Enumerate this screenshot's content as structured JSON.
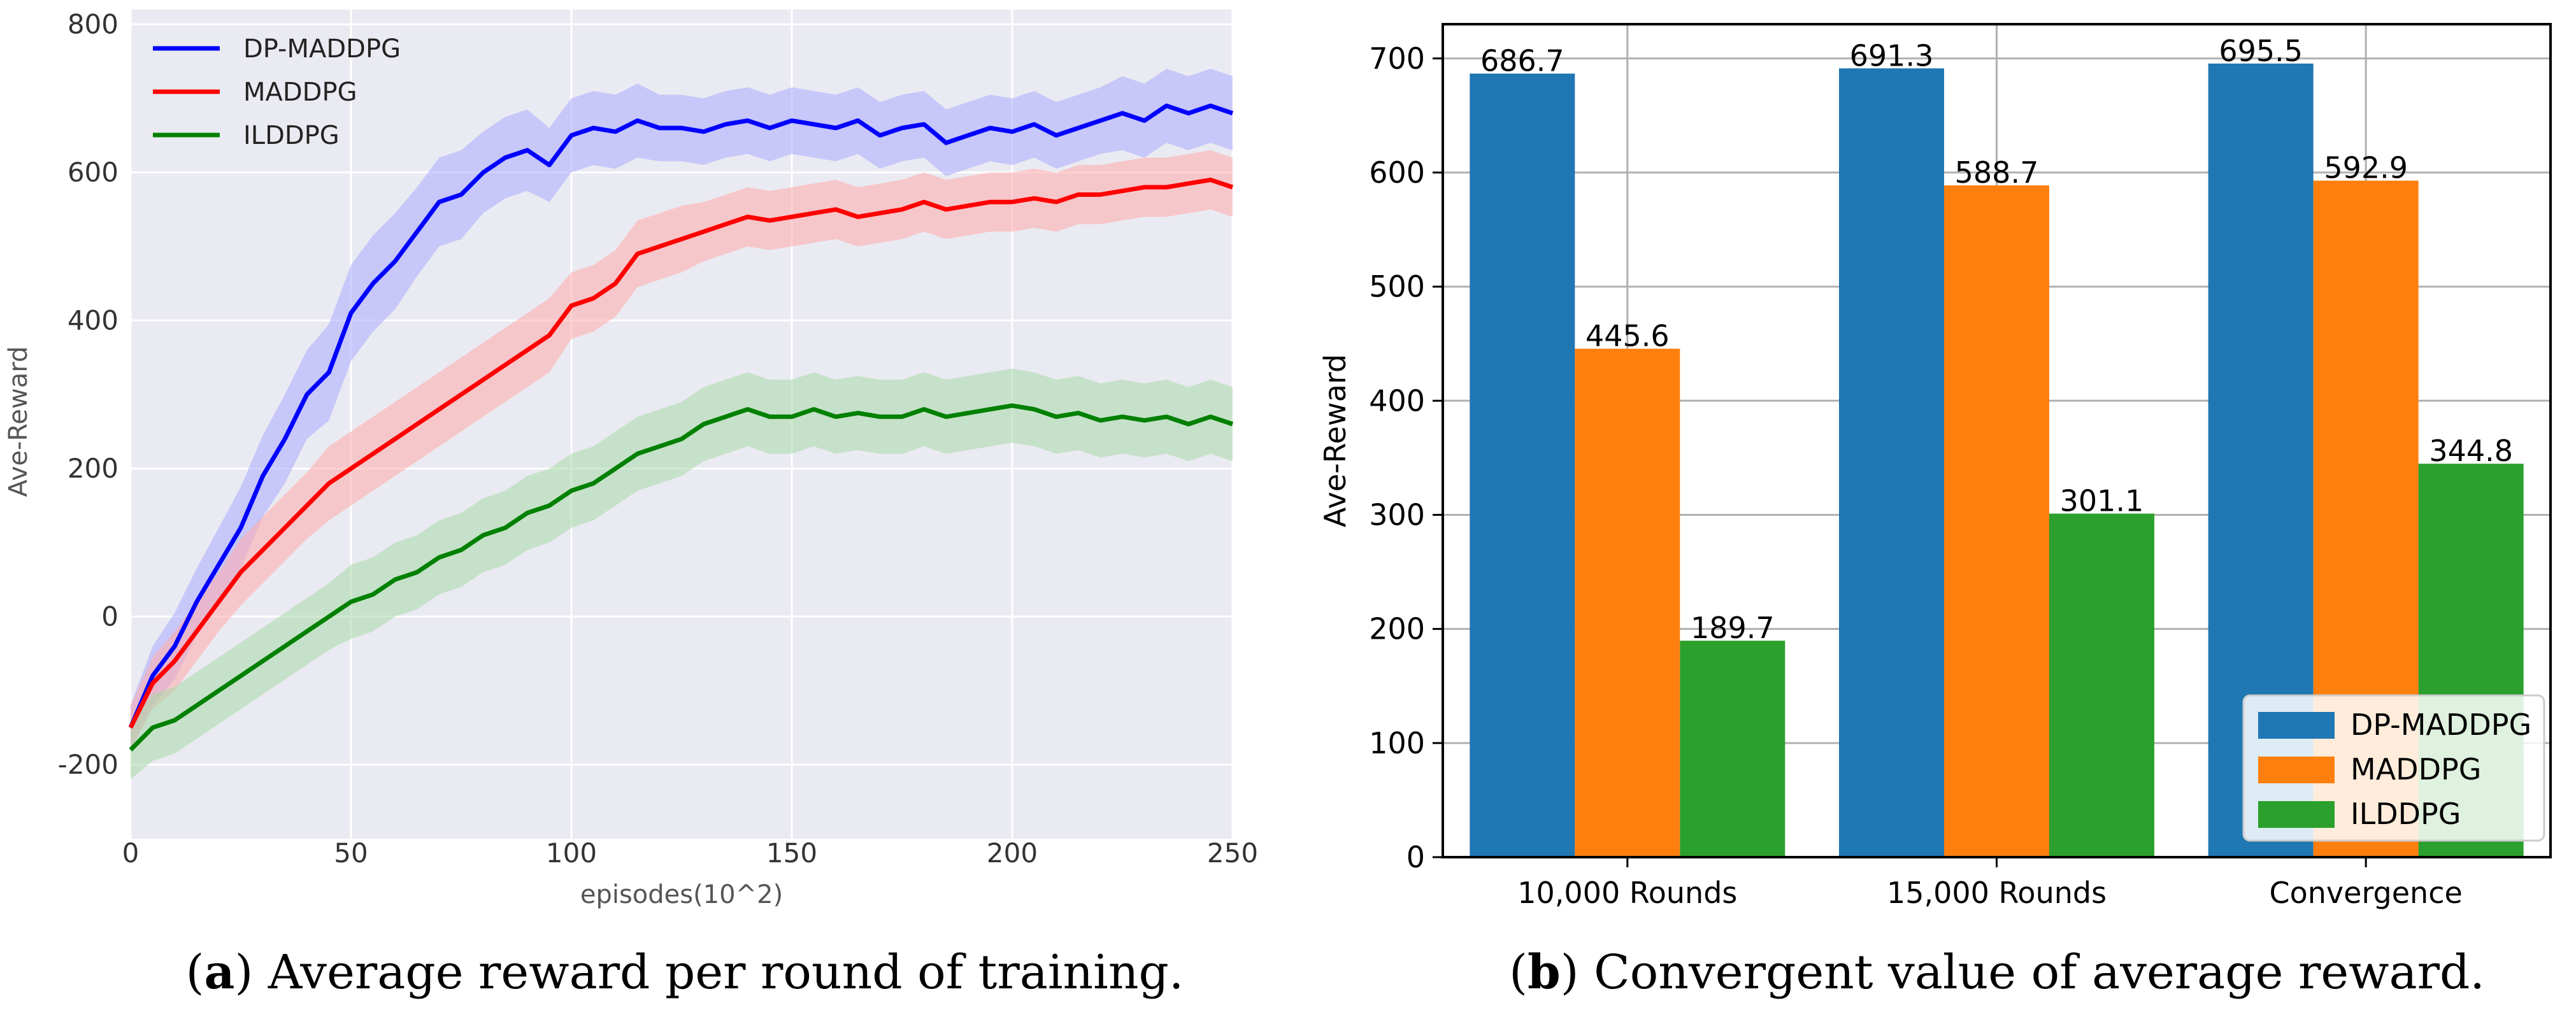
{
  "chart_data": [
    {
      "id": "a",
      "type": "line",
      "panel_label": "a",
      "caption": "Average reward per round of training.",
      "xlabel": "episodes(10^2)",
      "ylabel": "Ave-Reward",
      "xlim": [
        0,
        250
      ],
      "ylim": [
        -300,
        820
      ],
      "xticks": [
        "0",
        "50",
        "100",
        "150",
        "200",
        "250"
      ],
      "yticks": [
        "-200",
        "0",
        "200",
        "400",
        "600",
        "800"
      ],
      "grid": true,
      "legend_position": "top-left",
      "series": [
        {
          "name": "DP-MADDPG",
          "color": "#0000ff",
          "band_color": "#aaaaff",
          "x": [
            0,
            5,
            10,
            15,
            20,
            25,
            30,
            35,
            40,
            45,
            50,
            55,
            60,
            65,
            70,
            75,
            80,
            85,
            90,
            95,
            100,
            105,
            110,
            115,
            120,
            125,
            130,
            135,
            140,
            145,
            150,
            155,
            160,
            165,
            170,
            175,
            180,
            185,
            190,
            195,
            200,
            205,
            210,
            215,
            220,
            225,
            230,
            235,
            240,
            245,
            250
          ],
          "y": [
            -150,
            -80,
            -40,
            20,
            70,
            120,
            190,
            240,
            300,
            330,
            410,
            450,
            480,
            520,
            560,
            570,
            600,
            620,
            630,
            610,
            650,
            660,
            655,
            670,
            660,
            660,
            655,
            665,
            670,
            660,
            670,
            665,
            660,
            670,
            650,
            660,
            665,
            640,
            650,
            660,
            655,
            665,
            650,
            660,
            670,
            680,
            670,
            690,
            680,
            690,
            680
          ],
          "band": [
            30,
            40,
            45,
            45,
            50,
            55,
            55,
            60,
            60,
            65,
            65,
            65,
            65,
            60,
            60,
            60,
            55,
            55,
            55,
            50,
            50,
            50,
            50,
            50,
            45,
            45,
            45,
            45,
            45,
            45,
            45,
            45,
            45,
            45,
            45,
            45,
            45,
            45,
            45,
            45,
            45,
            45,
            45,
            45,
            45,
            50,
            50,
            50,
            50,
            50,
            50
          ]
        },
        {
          "name": "MADDPG",
          "color": "#ff0000",
          "band_color": "#ffaaaa",
          "x": [
            0,
            5,
            10,
            15,
            20,
            25,
            30,
            35,
            40,
            45,
            50,
            55,
            60,
            65,
            70,
            75,
            80,
            85,
            90,
            95,
            100,
            105,
            110,
            115,
            120,
            125,
            130,
            135,
            140,
            145,
            150,
            155,
            160,
            165,
            170,
            175,
            180,
            185,
            190,
            195,
            200,
            205,
            210,
            215,
            220,
            225,
            230,
            235,
            240,
            245,
            250
          ],
          "y": [
            -150,
            -90,
            -60,
            -20,
            20,
            60,
            90,
            120,
            150,
            180,
            200,
            220,
            240,
            260,
            280,
            300,
            320,
            340,
            360,
            380,
            420,
            430,
            450,
            490,
            500,
            510,
            520,
            530,
            540,
            535,
            540,
            545,
            550,
            540,
            545,
            550,
            560,
            550,
            555,
            560,
            560,
            565,
            560,
            570,
            570,
            575,
            580,
            580,
            585,
            590,
            580
          ],
          "band": [
            30,
            35,
            40,
            40,
            40,
            45,
            45,
            45,
            45,
            50,
            50,
            50,
            50,
            50,
            50,
            50,
            50,
            50,
            50,
            50,
            45,
            45,
            45,
            45,
            45,
            45,
            40,
            40,
            40,
            40,
            40,
            40,
            40,
            40,
            40,
            40,
            40,
            40,
            40,
            40,
            40,
            40,
            40,
            40,
            40,
            40,
            40,
            40,
            40,
            40,
            40
          ]
        },
        {
          "name": "ILDDPG",
          "color": "#008000",
          "band_color": "#a8d8a8",
          "x": [
            0,
            5,
            10,
            15,
            20,
            25,
            30,
            35,
            40,
            45,
            50,
            55,
            60,
            65,
            70,
            75,
            80,
            85,
            90,
            95,
            100,
            105,
            110,
            115,
            120,
            125,
            130,
            135,
            140,
            145,
            150,
            155,
            160,
            165,
            170,
            175,
            180,
            185,
            190,
            195,
            200,
            205,
            210,
            215,
            220,
            225,
            230,
            235,
            240,
            245,
            250
          ],
          "y": [
            -180,
            -150,
            -140,
            -120,
            -100,
            -80,
            -60,
            -40,
            -20,
            0,
            20,
            30,
            50,
            60,
            80,
            90,
            110,
            120,
            140,
            150,
            170,
            180,
            200,
            220,
            230,
            240,
            260,
            270,
            280,
            270,
            270,
            280,
            270,
            275,
            270,
            270,
            280,
            270,
            275,
            280,
            285,
            280,
            270,
            275,
            265,
            270,
            265,
            270,
            260,
            270,
            260
          ],
          "band": [
            40,
            45,
            45,
            45,
            45,
            45,
            45,
            45,
            45,
            45,
            50,
            50,
            50,
            50,
            50,
            50,
            50,
            50,
            50,
            50,
            50,
            50,
            50,
            50,
            50,
            50,
            50,
            50,
            50,
            50,
            50,
            50,
            50,
            50,
            50,
            50,
            50,
            50,
            50,
            50,
            50,
            50,
            50,
            50,
            50,
            50,
            50,
            50,
            50,
            50,
            50
          ]
        }
      ]
    },
    {
      "id": "b",
      "type": "bar",
      "panel_label": "b",
      "caption": "Convergent value of average reward.",
      "categories": [
        "10,000 Rounds",
        "15,000 Rounds",
        "Convergence"
      ],
      "ylabel": "Ave-Reward",
      "ylim": [
        0,
        730
      ],
      "yticks": [
        "0",
        "100",
        "200",
        "300",
        "400",
        "500",
        "600",
        "700"
      ],
      "grid": true,
      "legend_position": "bottom-right",
      "series": [
        {
          "name": "DP-MADDPG",
          "color": "#1f77b4",
          "values": [
            686.7,
            691.3,
            695.5
          ],
          "labels": [
            "686.7",
            "691.3",
            "695.5"
          ]
        },
        {
          "name": "MADDPG",
          "color": "#ff7f0e",
          "values": [
            445.6,
            588.7,
            592.9
          ],
          "labels": [
            "445.6",
            "588.7",
            "592.9"
          ]
        },
        {
          "name": "ILDDPG",
          "color": "#2ca02c",
          "values": [
            189.7,
            301.1,
            344.8
          ],
          "labels": [
            "189.7",
            "301.1",
            "344.8"
          ]
        }
      ]
    }
  ]
}
